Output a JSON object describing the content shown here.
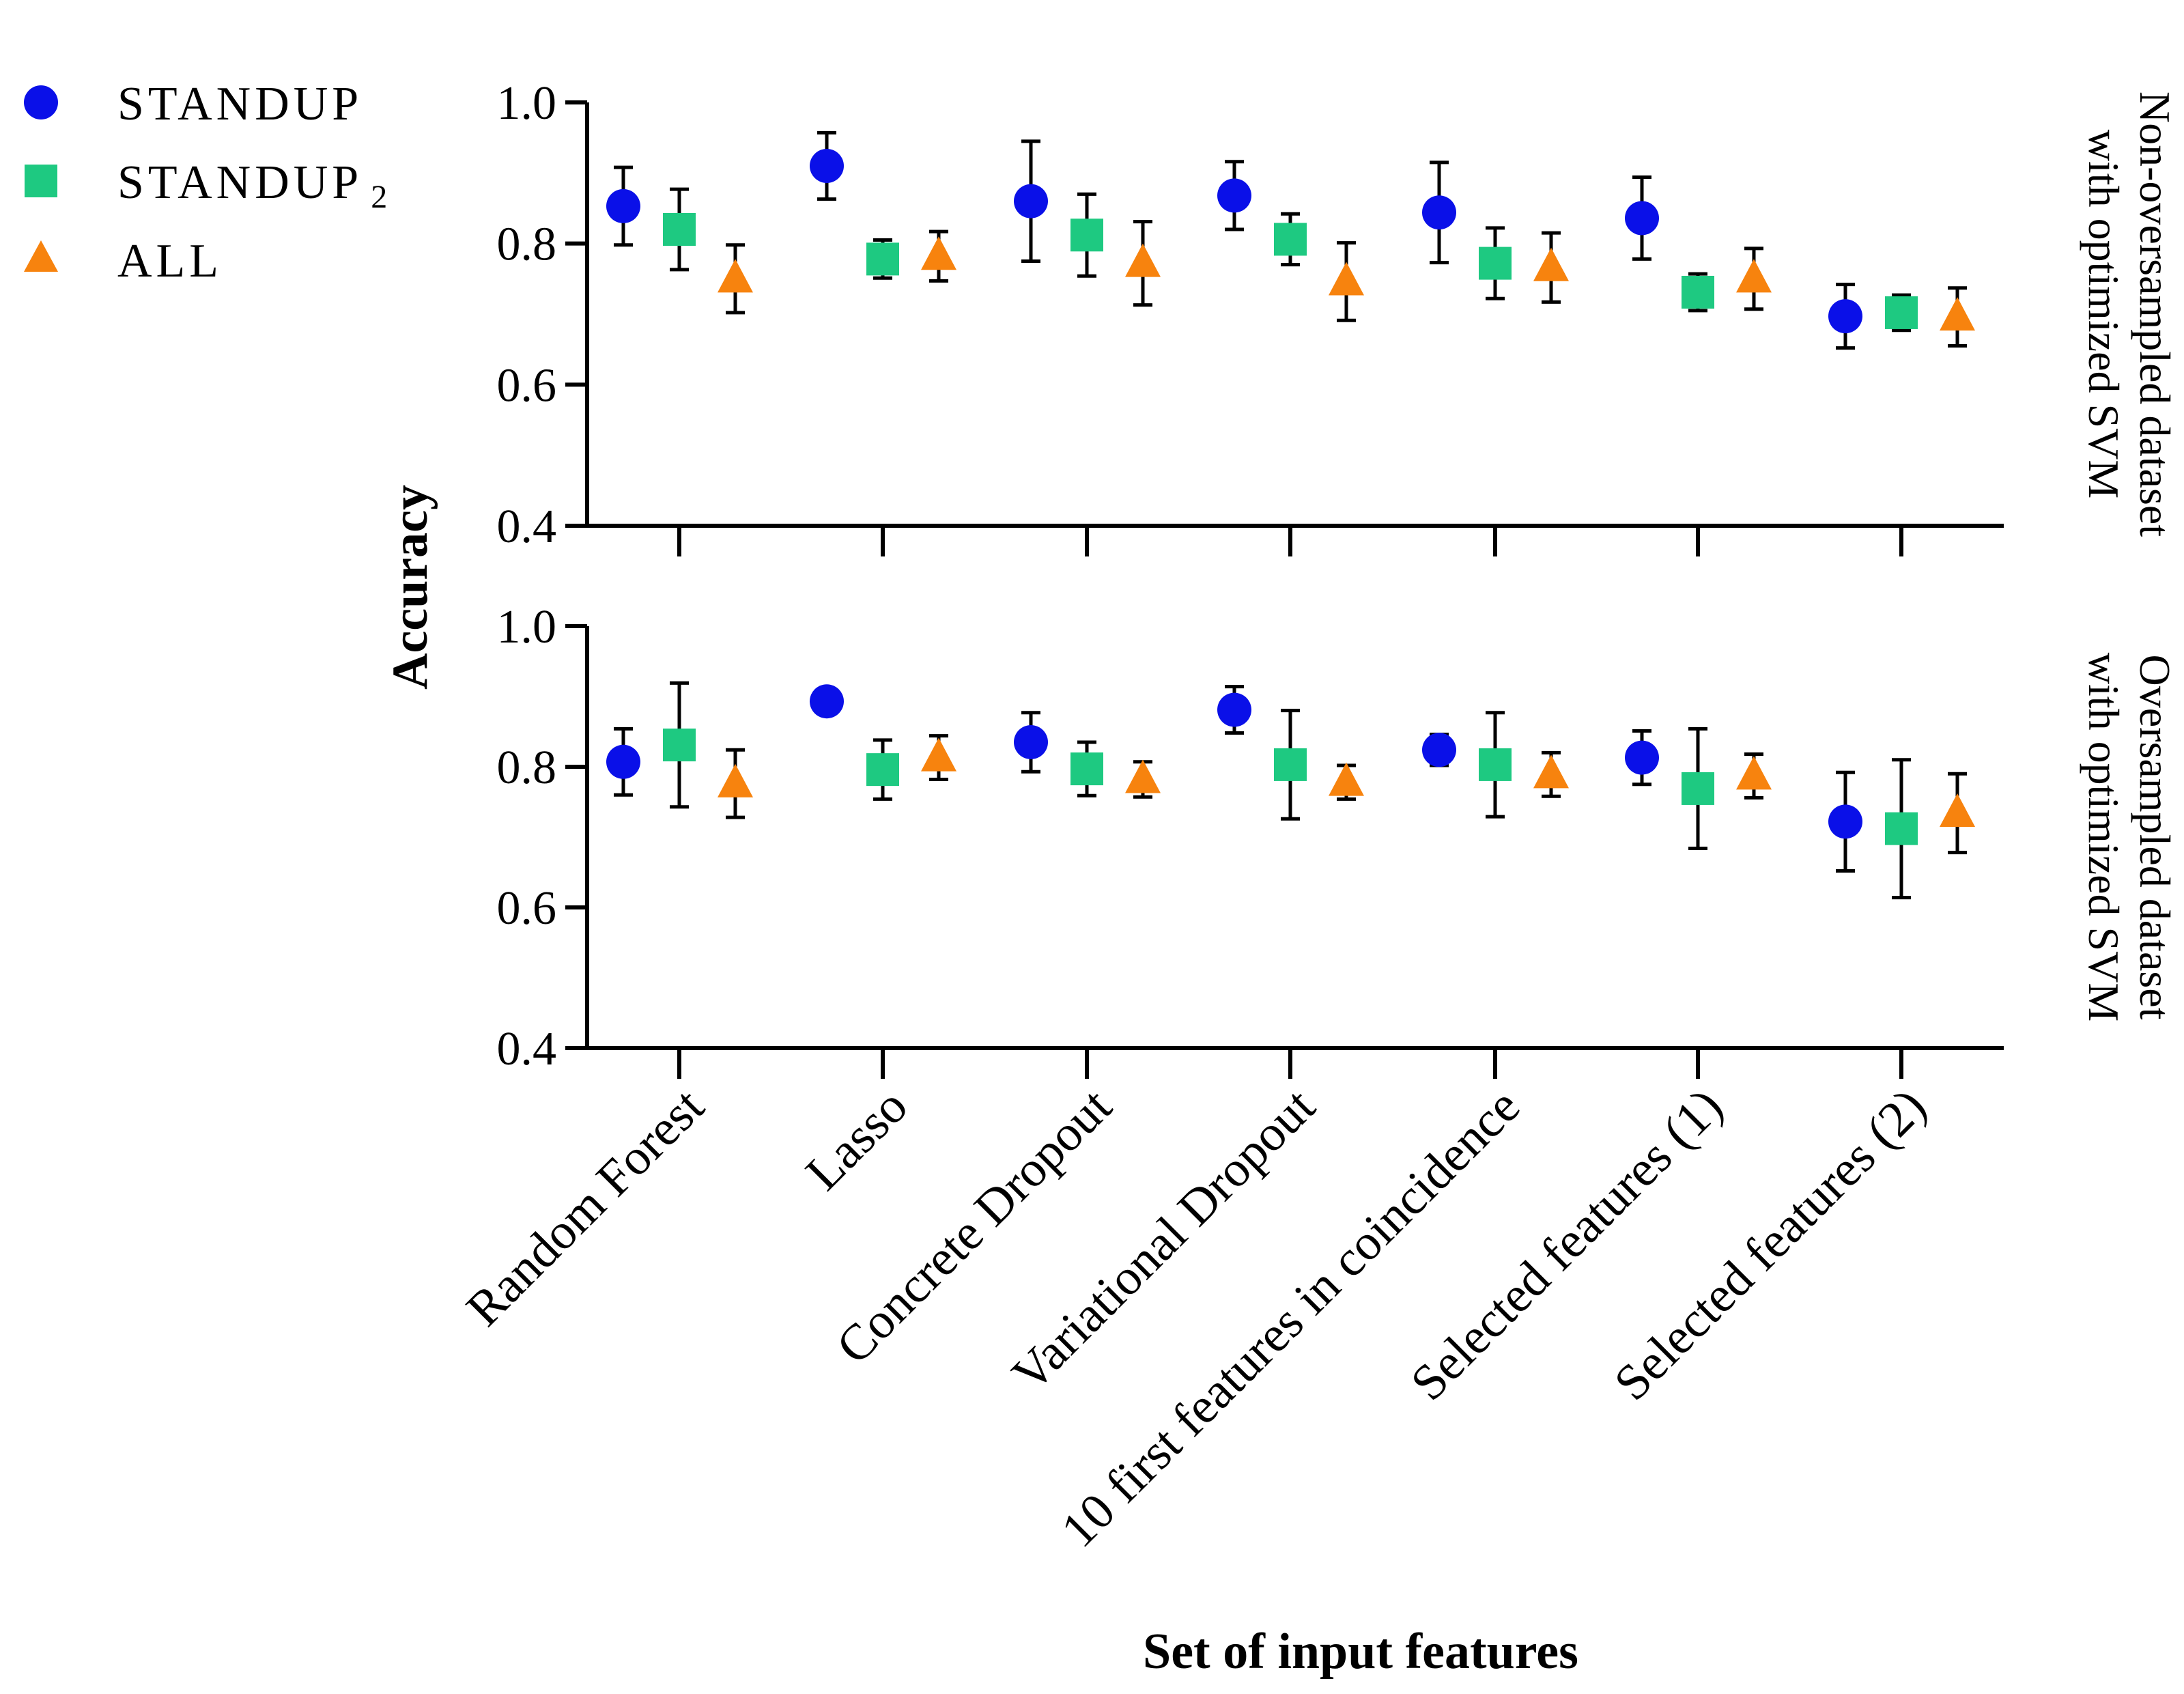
{
  "chart_data": {
    "type": "scatter",
    "x_label": "Set of input features",
    "y_label": "Accuracy",
    "categories": [
      "Random Forest",
      "Lasso",
      "Concrete Dropout",
      "Variational Dropout",
      "10 first features in coincidence",
      "Selected features (1)",
      "Selected features (2)"
    ],
    "y_range": [
      0.4,
      1.0
    ],
    "y_ticks": [
      "0.4",
      "0.6",
      "0.8",
      "1.0"
    ],
    "legend_position": "top-left",
    "legend": [
      {
        "name": "STANDUP",
        "sub": "",
        "color": "#0a10e8",
        "marker": "circle"
      },
      {
        "name": "STANDUP",
        "sub": "2",
        "color": "#1ec981",
        "marker": "square"
      },
      {
        "name": "ALL",
        "sub": "",
        "color": "#f7830e",
        "marker": "triangle"
      }
    ],
    "panels": [
      {
        "title_line1": "Non-oversampled dataset",
        "title_line2": "with optimized SVM",
        "series": [
          {
            "name": "STANDUP",
            "values": [
              0.853,
              0.91,
              0.86,
              0.868,
              0.844,
              0.836,
              0.697
            ],
            "errors": [
              0.055,
              0.047,
              0.085,
              0.048,
              0.071,
              0.058,
              0.045
            ]
          },
          {
            "name": "STANDUP2",
            "values": [
              0.82,
              0.778,
              0.812,
              0.806,
              0.772,
              0.731,
              0.702
            ],
            "errors": [
              0.057,
              0.027,
              0.058,
              0.036,
              0.05,
              0.026,
              0.025
            ]
          },
          {
            "name": "ALL",
            "values": [
              0.75,
              0.782,
              0.772,
              0.746,
              0.766,
              0.75,
              0.696
            ],
            "errors": [
              0.048,
              0.035,
              0.059,
              0.055,
              0.049,
              0.043,
              0.041
            ]
          }
        ]
      },
      {
        "title_line1": "Oversampled dataset",
        "title_line2": "with optimized SVM",
        "series": [
          {
            "name": "STANDUP",
            "values": [
              0.807,
              0.893,
              0.835,
              0.881,
              0.824,
              0.813,
              0.722
            ],
            "errors": [
              0.047,
              0.0,
              0.042,
              0.033,
              0.022,
              0.038,
              0.07
            ]
          },
          {
            "name": "STANDUP2",
            "values": [
              0.831,
              0.796,
              0.797,
              0.803,
              0.803,
              0.769,
              0.712
            ],
            "errors": [
              0.088,
              0.042,
              0.038,
              0.077,
              0.074,
              0.085,
              0.098
            ]
          },
          {
            "name": "ALL",
            "values": [
              0.776,
              0.813,
              0.782,
              0.778,
              0.789,
              0.787,
              0.734
            ],
            "errors": [
              0.048,
              0.031,
              0.025,
              0.024,
              0.031,
              0.031,
              0.056
            ]
          }
        ]
      }
    ]
  }
}
